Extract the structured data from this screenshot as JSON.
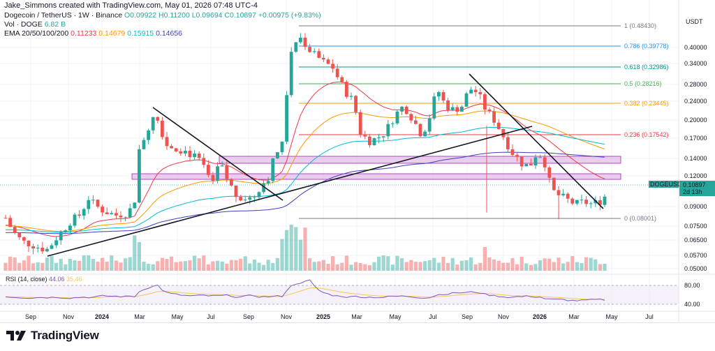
{
  "header": {
    "credit": "Jake_Simmons created with TradingView.com, May 01, 2026 07:48 UTC-4",
    "symbol_line": "Dogecoin / TetherUS · 1W · Binance",
    "ohlc": "O0.09922 H0.11200 L0.09694 C0.10897 +0.00975 (+9.83%)",
    "vol_label": "Vol · DOGE",
    "vol_value": "6.82 B",
    "ema_label": "EMA 20/50/100/200",
    "ema_values": [
      "0.11233",
      "0.14679",
      "0.15915",
      "0.14656"
    ]
  },
  "colors": {
    "up": "#26a69a",
    "down": "#ef5350",
    "ema20": "#f23645",
    "ema50": "#ff9800",
    "ema100": "#00bcd4",
    "ema200": "#3f3fbf",
    "rsi": "#7e57c2",
    "rsi_ma": "#f9c74f",
    "zone_fill": "#e1bee7",
    "zone_stroke": "#9c27b0"
  },
  "chart_data": {
    "type": "candlestick",
    "price_axis": {
      "unit": "USDT",
      "scale": "log",
      "ticks": [
        "0.40000",
        "0.34000",
        "0.28000",
        "0.24000",
        "0.20000",
        "0.17000",
        "0.14000",
        "0.12000",
        "0.09000",
        "0.07500",
        "0.06500",
        "0.05700",
        "0.05000"
      ]
    },
    "time_axis": {
      "ticks": [
        "Sep",
        "Nov",
        "2024",
        "Mar",
        "May",
        "Jul",
        "Sep",
        "Nov",
        "2025",
        "Mar",
        "May",
        "Jul",
        "Sep",
        "Nov",
        "2026",
        "Mar",
        "May",
        "Jul"
      ]
    },
    "current_price": {
      "symbol": "DOGEUSDT",
      "value": "0.10897",
      "countdown": "2d 13h"
    },
    "fibonacci": [
      {
        "level": "1",
        "price": "0.48430"
      },
      {
        "level": "0.786",
        "price": "0.39778"
      },
      {
        "level": "0.618",
        "price": "0.32986"
      },
      {
        "level": "0.5",
        "price": "0.28216"
      },
      {
        "level": "0.382",
        "price": "0.23445"
      },
      {
        "level": "0.236",
        "price": "0.17542"
      },
      {
        "level": "0",
        "price": "0.08001"
      }
    ],
    "rsi": {
      "label": "RSI (14, close)",
      "value": "44.06",
      "ma_value": "35.46",
      "ticks": [
        "80.00",
        "40.00"
      ]
    }
  },
  "footer": {
    "brand": "TradingView"
  }
}
